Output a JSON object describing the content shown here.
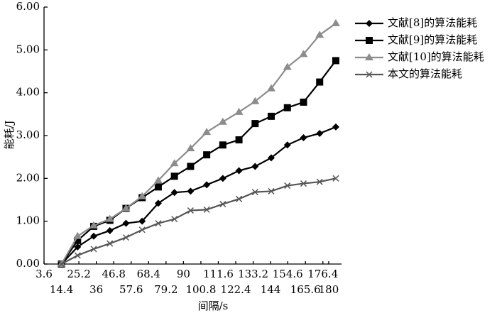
{
  "chart_data": {
    "type": "line",
    "xlabel": "间隔/s",
    "ylabel": "能耗/J",
    "x": [
      14.4,
      24.4,
      34.4,
      44.4,
      54.4,
      64.4,
      74.4,
      84.4,
      94.4,
      104.4,
      114.4,
      124.4,
      134.4,
      144.4,
      154.4,
      164.4,
      174.4,
      184.4
    ],
    "series": [
      {
        "name": "文献[8]的算法能耗",
        "color": "#000000",
        "marker": "diamond",
        "values": [
          0,
          0.4,
          0.65,
          0.78,
          0.95,
          1.0,
          1.42,
          1.67,
          1.7,
          1.85,
          2.0,
          2.18,
          2.28,
          2.48,
          2.78,
          2.95,
          3.05,
          3.2
        ]
      },
      {
        "name": "文献[9]的算法能耗",
        "color": "#000000",
        "marker": "square",
        "values": [
          0,
          0.55,
          0.88,
          1.02,
          1.3,
          1.55,
          1.8,
          2.05,
          2.28,
          2.55,
          2.78,
          2.9,
          3.28,
          3.45,
          3.65,
          3.78,
          4.25,
          4.75
        ]
      },
      {
        "name": "文献[10]的算法能耗",
        "color": "#8c8c8c",
        "marker": "triangle",
        "values": [
          0,
          0.65,
          0.9,
          1.05,
          1.3,
          1.58,
          1.95,
          2.35,
          2.7,
          3.08,
          3.32,
          3.55,
          3.8,
          4.1,
          4.6,
          4.9,
          5.35,
          5.62
        ]
      },
      {
        "name": "本文的算法能耗",
        "color": "#555555",
        "marker": "x",
        "values": [
          0,
          0.2,
          0.35,
          0.48,
          0.62,
          0.8,
          0.95,
          1.05,
          1.25,
          1.27,
          1.4,
          1.52,
          1.68,
          1.7,
          1.83,
          1.88,
          1.92,
          2.0
        ]
      }
    ],
    "xlim": [
      3.6,
      188
    ],
    "xticks": [
      3.6,
      14.4,
      25.2,
      36,
      46.8,
      57.6,
      68.4,
      79.2,
      90,
      100.8,
      111.6,
      122.4,
      133.2,
      144,
      154.6,
      165.6,
      176.4,
      180
    ],
    "ylim": [
      0,
      6
    ],
    "yticks": [
      {
        "value": 0,
        "label": "0.00"
      },
      {
        "value": 1,
        "label": "1.00"
      },
      {
        "value": 2,
        "label": "2.00"
      },
      {
        "value": 3,
        "label": "3.00"
      },
      {
        "value": 4,
        "label": "4.00"
      },
      {
        "value": 5,
        "label": "5.00"
      },
      {
        "value": 6,
        "label": "6.00"
      }
    ],
    "legend": "upper right",
    "grid": false
  }
}
